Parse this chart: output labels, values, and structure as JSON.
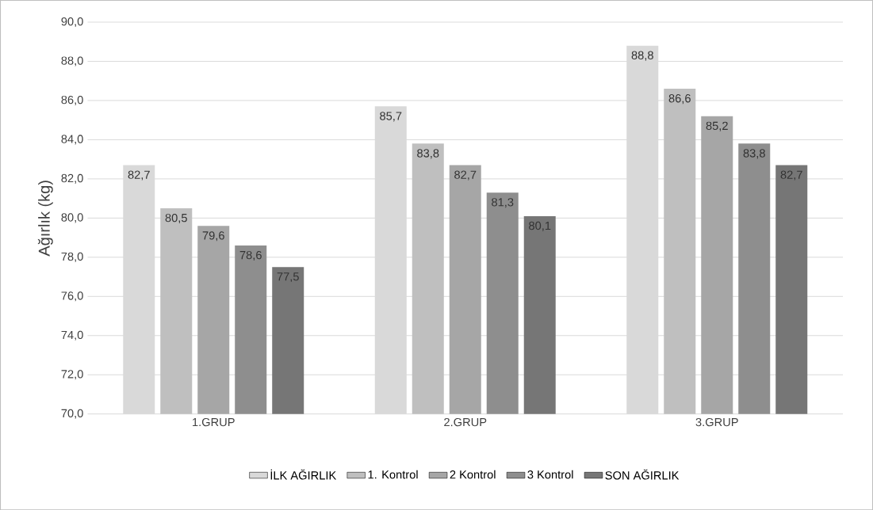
{
  "chart_data": {
    "type": "bar",
    "ylabel": "Ağırlık (kg)",
    "categories": [
      "1.GRUP",
      "2.GRUP",
      "3.GRUP"
    ],
    "series": [
      {
        "name": "İLK AĞIRLIK",
        "color": "#d9d9d9",
        "values": [
          82.7,
          85.7,
          88.8
        ],
        "value_labels": [
          "82,7",
          "85,7",
          "88,8"
        ]
      },
      {
        "name": "1. Kontrol",
        "color": "#bfbfbf",
        "values": [
          80.5,
          83.8,
          86.6
        ],
        "value_labels": [
          "80,5",
          "83,8",
          "86,6"
        ]
      },
      {
        "name": "2 Kontrol",
        "color": "#a6a6a6",
        "values": [
          79.6,
          82.7,
          85.2
        ],
        "value_labels": [
          "79,6",
          "82,7",
          "85,2"
        ]
      },
      {
        "name": "3 Kontrol",
        "color": "#8e8e8e",
        "values": [
          78.6,
          81.3,
          83.8
        ],
        "value_labels": [
          "78,6",
          "81,3",
          "83,8"
        ]
      },
      {
        "name": "SON AĞIRLIK",
        "color": "#767676",
        "values": [
          77.5,
          80.1,
          82.7
        ],
        "value_labels": [
          "77,5",
          "80,1",
          "82,7"
        ]
      }
    ],
    "ylim": [
      70,
      90
    ],
    "yticks": [
      {
        "value": 70,
        "label": "70,0"
      },
      {
        "value": 72,
        "label": "72,0"
      },
      {
        "value": 74,
        "label": "74,0"
      },
      {
        "value": 76,
        "label": "76,0"
      },
      {
        "value": 78,
        "label": "78,0"
      },
      {
        "value": 80,
        "label": "80,0"
      },
      {
        "value": 82,
        "label": "82,0"
      },
      {
        "value": 84,
        "label": "84,0"
      },
      {
        "value": 86,
        "label": "86,0"
      },
      {
        "value": 88,
        "label": "88,0"
      },
      {
        "value": 90,
        "label": "90,0"
      }
    ],
    "grid": "y",
    "legend": "bottom"
  }
}
